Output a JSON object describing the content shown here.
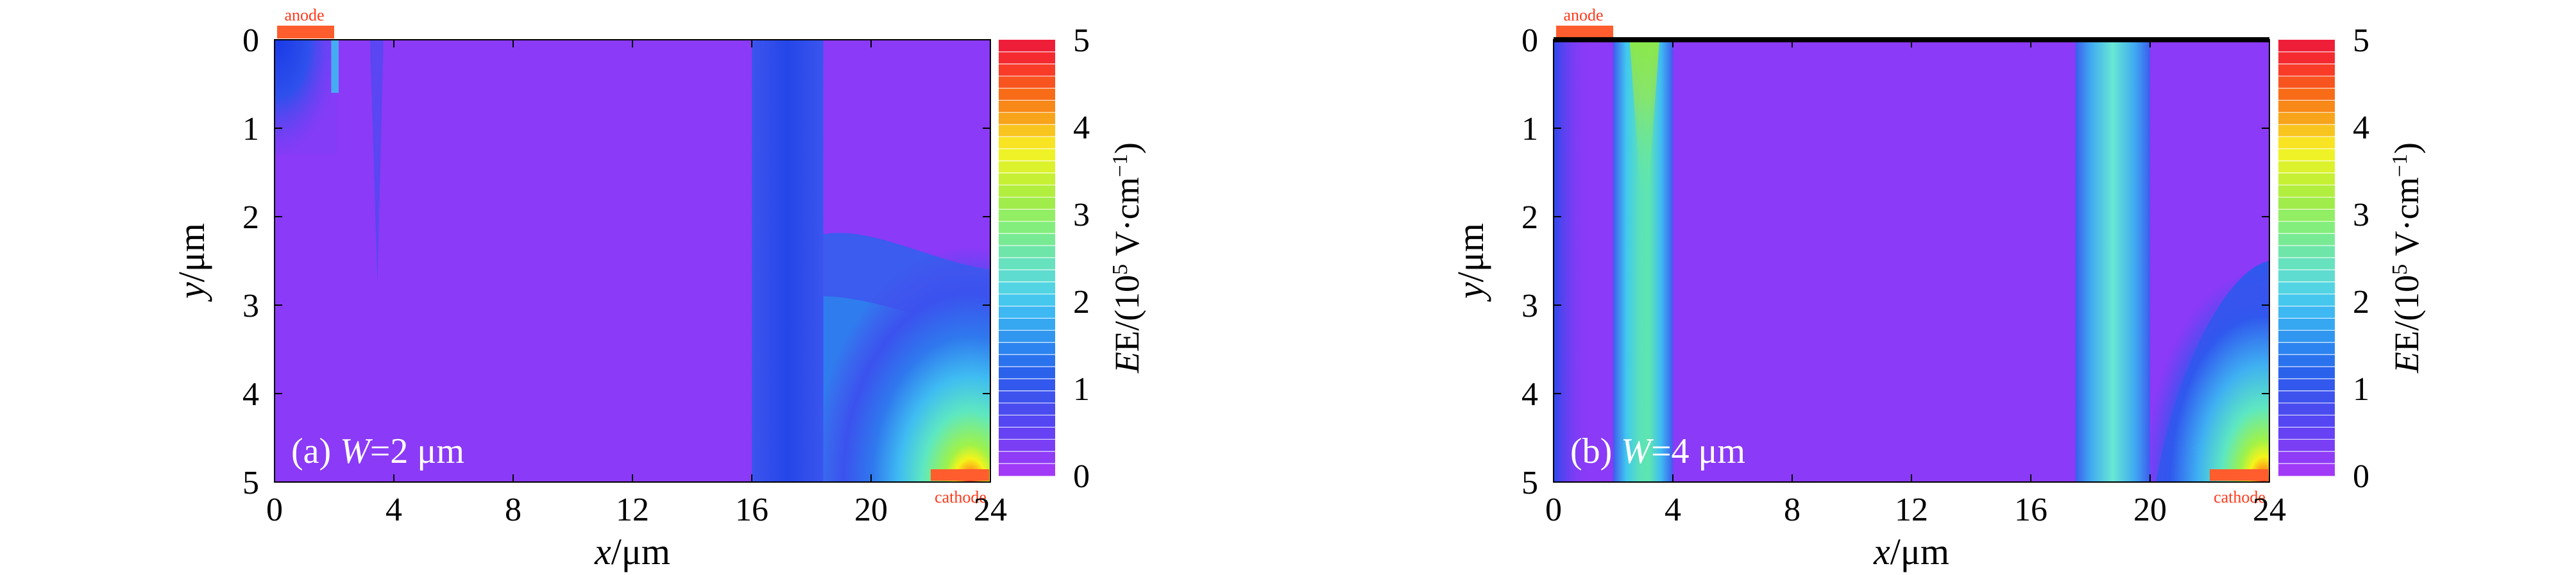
{
  "colors": {
    "background": "#8b3af7",
    "electrode": "#ff5d2e",
    "electrode_text": "#ff3a1c"
  },
  "colorbar": {
    "min": 0,
    "max": 5,
    "ticks": [
      0,
      1,
      2,
      3,
      4,
      5
    ],
    "label_main": "E/(10",
    "label_exp": "5",
    "label_unit": " V·cm",
    "label_unit_exp": "−1",
    "label_close": ")"
  },
  "chart_data": [
    {
      "type": "heatmap",
      "panel_label": "(a) ",
      "param_symbol": "W",
      "param_value": "=2 μm",
      "xlabel_var": "x",
      "xlabel_unit": "/μm",
      "ylabel_var": "y",
      "ylabel_unit": "/μm",
      "xlim": [
        0,
        24
      ],
      "ylim": [
        0,
        5
      ],
      "y_inverted": true,
      "xticks": [
        0,
        4,
        8,
        12,
        16,
        20,
        24
      ],
      "yticks": [
        0,
        1,
        2,
        3,
        4,
        5
      ],
      "anode": {
        "label": "anode",
        "x_start": 0,
        "x_end": 2
      },
      "cathode": {
        "label": "cathode",
        "x_start": 22,
        "x_end": 24
      },
      "field_features": [
        {
          "kind": "anode_corner",
          "x": [
            0,
            2.1
          ],
          "y": [
            0,
            1.3
          ],
          "E_peak": 2.5
        },
        {
          "kind": "spike",
          "x": 3.4,
          "y_end": 2.7,
          "E": 0.8
        },
        {
          "kind": "band",
          "x": [
            16,
            18.4
          ],
          "E": 0.6
        },
        {
          "kind": "cathode_corner",
          "x": [
            18.4,
            24
          ],
          "y": [
            2.2,
            5
          ],
          "E_peak": 5.0
        }
      ]
    },
    {
      "type": "heatmap",
      "panel_label": "(b) ",
      "param_symbol": "W",
      "param_value": "=4 μm",
      "xlabel_var": "x",
      "xlabel_unit": "/μm",
      "ylabel_var": "y",
      "ylabel_unit": "/μm",
      "xlim": [
        0,
        24
      ],
      "ylim": [
        0,
        5
      ],
      "y_inverted": true,
      "xticks": [
        0,
        4,
        8,
        12,
        16,
        20,
        24
      ],
      "yticks": [
        0,
        1,
        2,
        3,
        4,
        5
      ],
      "anode": {
        "label": "anode",
        "x_start": 0,
        "x_end": 2
      },
      "cathode": {
        "label": "cathode",
        "x_start": 22,
        "x_end": 24
      },
      "field_features": [
        {
          "kind": "band",
          "x": [
            2,
            4
          ],
          "E_peak": 3.2
        },
        {
          "kind": "band",
          "x": [
            17.5,
            20
          ],
          "E_peak": 2.3
        },
        {
          "kind": "cathode_corner",
          "x": [
            20,
            24
          ],
          "y": [
            2.7,
            5
          ],
          "E_peak": 5.0
        }
      ]
    }
  ]
}
